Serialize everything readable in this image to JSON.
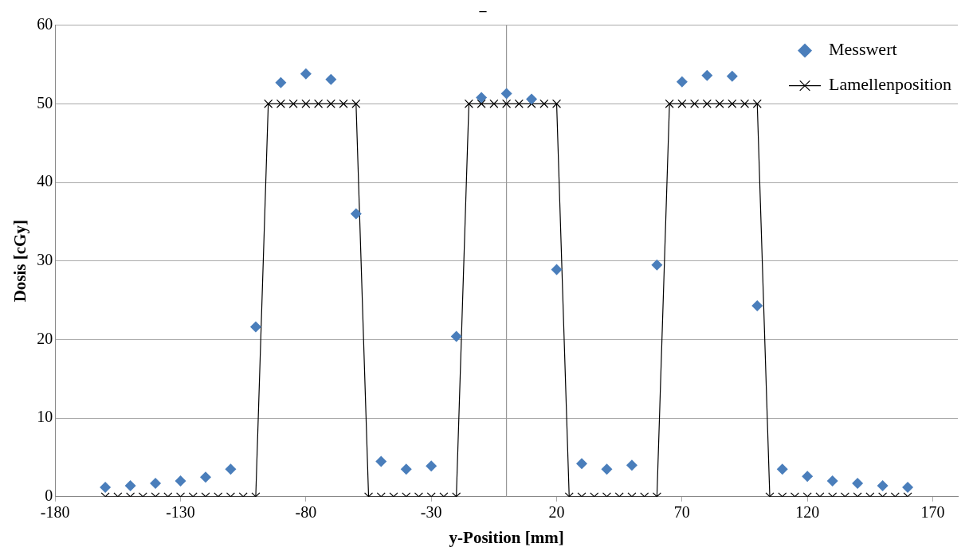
{
  "chart_data": {
    "type": "scatter",
    "title": "–",
    "xlabel": "y-Position [mm]",
    "ylabel": "Dosis [cGy]",
    "xlim": [
      -180,
      180
    ],
    "xticks": [
      -180,
      -130,
      -80,
      -30,
      20,
      70,
      120,
      170
    ],
    "ylim": [
      0,
      60
    ],
    "yticks": [
      0,
      10,
      20,
      30,
      40,
      50,
      60
    ],
    "grid": "y",
    "legend": "top right",
    "ref_lines": [
      {
        "axis": "x",
        "value": 0,
        "color": "#999999"
      }
    ],
    "series": [
      {
        "name": "Messwert",
        "type": "scatter",
        "marker": "diamond",
        "color": "#4a7ebb",
        "x": [
          -160,
          -150,
          -140,
          -130,
          -120,
          -110,
          -100,
          -90,
          -80,
          -70,
          -60,
          -50,
          -40,
          -30,
          -20,
          -10,
          0,
          10,
          20,
          30,
          40,
          50,
          60,
          70,
          80,
          90,
          100,
          110,
          120,
          130,
          140,
          150,
          160
        ],
        "values": [
          1.2,
          1.4,
          1.7,
          2.0,
          2.5,
          3.5,
          21.6,
          52.7,
          53.8,
          53.1,
          36.0,
          4.5,
          3.5,
          3.9,
          20.4,
          50.8,
          51.3,
          50.6,
          28.9,
          4.2,
          3.5,
          4.0,
          29.5,
          52.8,
          53.6,
          53.5,
          24.3,
          3.5,
          2.6,
          2.0,
          1.7,
          1.4,
          1.2
        ]
      },
      {
        "name": "Lamellenposition",
        "type": "line",
        "marker": "cross",
        "line_style": "solid",
        "color": "#000000",
        "x": [
          -160,
          -155,
          -150,
          -145,
          -140,
          -135,
          -130,
          -125,
          -120,
          -115,
          -110,
          -105,
          -100,
          -95,
          -90,
          -85,
          -80,
          -75,
          -70,
          -65,
          -60,
          -55,
          -50,
          -45,
          -40,
          -35,
          -30,
          -25,
          -20,
          -15,
          -10,
          -5,
          0,
          5,
          10,
          15,
          20,
          25,
          30,
          35,
          40,
          45,
          50,
          55,
          60,
          65,
          70,
          75,
          80,
          85,
          90,
          95,
          100,
          105,
          110,
          115,
          120,
          125,
          130,
          135,
          140,
          145,
          150,
          155,
          160
        ],
        "values": [
          0,
          0,
          0,
          0,
          0,
          0,
          0,
          0,
          0,
          0,
          0,
          0,
          0,
          50,
          50,
          50,
          50,
          50,
          50,
          50,
          50,
          0,
          0,
          0,
          0,
          0,
          0,
          0,
          0,
          50,
          50,
          50,
          50,
          50,
          50,
          50,
          50,
          0,
          0,
          0,
          0,
          0,
          0,
          0,
          0,
          50,
          50,
          50,
          50,
          50,
          50,
          50,
          50,
          0,
          0,
          0,
          0,
          0,
          0,
          0,
          0,
          0,
          0,
          0,
          0
        ]
      }
    ]
  }
}
